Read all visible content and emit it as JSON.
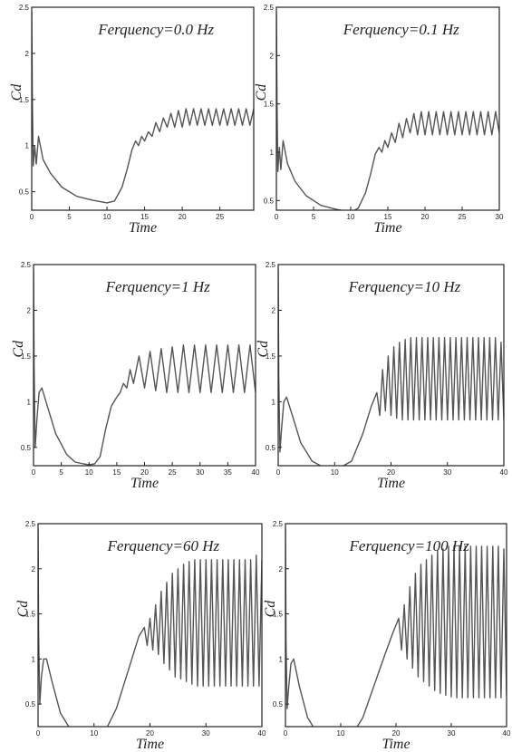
{
  "chart_data": [
    {
      "type": "line",
      "title": "Ferquency=0.0 Hz",
      "xlabel": "Time",
      "ylabel": "Cd",
      "xlim": [
        0,
        29.5
      ],
      "ylim": [
        0.3,
        2.5
      ],
      "x_ticks": [
        "0",
        "5",
        "10",
        "15",
        "20",
        "25"
      ],
      "y_ticks": [
        "0.5",
        "1",
        "1.5",
        "2",
        "2.5"
      ],
      "series": [
        {
          "x": [
            0.0,
            0.08,
            0.2,
            0.4,
            0.6,
            0.9,
            1.5,
            2.5,
            4,
            5,
            6,
            8,
            10,
            11,
            12,
            12.7,
            13.3,
            13.8,
            14.2,
            14.6,
            15.0,
            15.5,
            16.0,
            16.5,
            17.0,
            17.5,
            18.0,
            18.5,
            19.0,
            19.5,
            20.0,
            20.5,
            21.0,
            21.5,
            22.0,
            22.5,
            23.0,
            23.5,
            24.0,
            24.5,
            25.0,
            25.5,
            26.0,
            26.5,
            27.0,
            27.5,
            28.0,
            28.5,
            29.0,
            29.5
          ],
          "values": [
            2.45,
            1.5,
            0.78,
            1.0,
            0.8,
            1.1,
            0.85,
            0.7,
            0.55,
            0.5,
            0.45,
            0.41,
            0.38,
            0.4,
            0.55,
            0.75,
            0.95,
            1.05,
            1.0,
            1.1,
            1.05,
            1.15,
            1.1,
            1.25,
            1.15,
            1.3,
            1.2,
            1.35,
            1.2,
            1.38,
            1.2,
            1.4,
            1.22,
            1.4,
            1.22,
            1.4,
            1.22,
            1.4,
            1.22,
            1.4,
            1.22,
            1.4,
            1.22,
            1.4,
            1.22,
            1.4,
            1.22,
            1.4,
            1.22,
            1.4
          ]
        }
      ]
    },
    {
      "type": "line",
      "title": "Ferquency=0.1 Hz",
      "xlabel": "Time",
      "ylabel": "Cd",
      "xlim": [
        0,
        30
      ],
      "ylim": [
        0.4,
        2.5
      ],
      "x_ticks": [
        "0",
        "5",
        "10",
        "15",
        "20",
        "25",
        "30"
      ],
      "y_ticks": [
        "0.5",
        "1",
        "1.5",
        "2",
        "2.5"
      ],
      "series": [
        {
          "x": [
            0.0,
            0.08,
            0.2,
            0.4,
            0.6,
            0.9,
            1.5,
            2.5,
            4,
            5,
            6,
            8,
            10,
            11,
            12,
            12.7,
            13.3,
            13.8,
            14.2,
            14.6,
            15.0,
            15.5,
            16.0,
            16.5,
            17.0,
            17.5,
            18.0,
            18.5,
            19.0,
            19.5,
            20.0,
            20.5,
            21.0,
            21.5,
            22.0,
            22.5,
            23.0,
            23.5,
            24.0,
            24.5,
            25.0,
            25.5,
            26.0,
            26.5,
            27.0,
            27.5,
            28.0,
            28.5,
            29.0,
            29.5,
            30.0
          ],
          "values": [
            2.45,
            1.5,
            0.8,
            1.05,
            0.82,
            1.12,
            0.88,
            0.7,
            0.55,
            0.5,
            0.45,
            0.41,
            0.38,
            0.42,
            0.58,
            0.78,
            0.98,
            1.05,
            1.0,
            1.12,
            1.05,
            1.2,
            1.1,
            1.3,
            1.15,
            1.35,
            1.2,
            1.4,
            1.18,
            1.42,
            1.18,
            1.42,
            1.18,
            1.42,
            1.18,
            1.42,
            1.18,
            1.42,
            1.18,
            1.42,
            1.18,
            1.42,
            1.18,
            1.42,
            1.18,
            1.42,
            1.18,
            1.42,
            1.18,
            1.42,
            1.2
          ]
        }
      ]
    },
    {
      "type": "line",
      "title": "Ferquency=1 Hz",
      "xlabel": "Time",
      "ylabel": "Cd",
      "xlim": [
        0,
        40
      ],
      "ylim": [
        0.3,
        2.5
      ],
      "x_ticks": [
        "0",
        "5",
        "10",
        "15",
        "20",
        "25",
        "30",
        "35",
        "40"
      ],
      "y_ticks": [
        "0.5",
        "1",
        "1.5",
        "2",
        "2.5"
      ],
      "series": [
        {
          "x": [
            0.0,
            0.1,
            0.3,
            0.6,
            1.0,
            1.5,
            2.5,
            4,
            6,
            7.5,
            9,
            10,
            11,
            12,
            13,
            14,
            15,
            15.6,
            16.2,
            16.8,
            17.4,
            18.0,
            19.0,
            20.0,
            21.0,
            22.0,
            23.0,
            24.0,
            25.0,
            26.0,
            27.0,
            28.0,
            29.0,
            30.0,
            31.0,
            32.0,
            33.0,
            34.0,
            35.0,
            36.0,
            37.0,
            38.0,
            39.0,
            40.0
          ],
          "values": [
            2.45,
            1.4,
            0.5,
            0.8,
            1.1,
            1.15,
            0.95,
            0.65,
            0.42,
            0.34,
            0.32,
            0.31,
            0.32,
            0.4,
            0.7,
            0.95,
            1.05,
            1.1,
            1.2,
            1.15,
            1.35,
            1.2,
            1.5,
            1.15,
            1.55,
            1.12,
            1.58,
            1.1,
            1.6,
            1.1,
            1.62,
            1.1,
            1.62,
            1.1,
            1.62,
            1.1,
            1.62,
            1.1,
            1.62,
            1.1,
            1.62,
            1.1,
            1.62,
            1.1
          ]
        }
      ]
    },
    {
      "type": "line",
      "title": "Ferquency=10 Hz",
      "xlabel": "Time",
      "ylabel": "Cd",
      "xlim": [
        0,
        40
      ],
      "ylim": [
        0.3,
        2.5
      ],
      "x_ticks": [
        "0",
        "10",
        "20",
        "30",
        "40"
      ],
      "y_ticks": [
        "0.5",
        "1",
        "1.5",
        "2",
        "2.5"
      ],
      "series": [
        {
          "x": [
            0.0,
            0.1,
            0.3,
            0.6,
            1.0,
            1.5,
            2.5,
            4,
            6,
            7.5,
            9,
            11,
            13,
            15,
            16.5,
            17.5,
            18.0,
            18.5,
            19.0,
            19.5,
            20.0,
            20.5,
            21.0,
            21.5,
            22.0,
            22.5,
            23.0,
            23.5,
            24.0,
            24.5,
            25.0,
            25.5,
            26.0,
            26.5,
            27.0,
            27.5,
            28.0,
            28.5,
            29.0,
            29.5,
            30.0,
            30.5,
            31.0,
            31.5,
            32.0,
            32.5,
            33.0,
            33.5,
            34.0,
            34.5,
            35.0,
            35.5,
            36.0,
            36.5,
            37.0,
            37.5,
            38.0,
            38.5,
            39.0,
            39.5,
            40.0
          ],
          "values": [
            2.45,
            1.3,
            0.45,
            0.7,
            1.0,
            1.05,
            0.85,
            0.55,
            0.35,
            0.3,
            0.28,
            0.28,
            0.35,
            0.65,
            0.95,
            1.1,
            0.85,
            1.35,
            0.9,
            1.5,
            0.85,
            1.6,
            0.82,
            1.65,
            0.8,
            1.68,
            0.8,
            1.7,
            0.8,
            1.7,
            0.8,
            1.7,
            0.8,
            1.7,
            0.8,
            1.7,
            0.8,
            1.7,
            0.8,
            1.7,
            0.8,
            1.7,
            0.8,
            1.7,
            0.8,
            1.7,
            0.8,
            1.7,
            0.8,
            1.7,
            0.8,
            1.7,
            0.8,
            1.7,
            0.8,
            1.7,
            0.8,
            1.7,
            0.8,
            1.65,
            0.8
          ]
        }
      ]
    },
    {
      "type": "line",
      "title": "Ferquency=60 Hz",
      "xlabel": "Time",
      "ylabel": "Cd",
      "xlim": [
        0,
        40
      ],
      "ylim": [
        0.25,
        2.5
      ],
      "x_ticks": [
        "0",
        "10",
        "20",
        "30",
        "40"
      ],
      "y_ticks": [
        "0.5",
        "1",
        "1.5",
        "2",
        "2.5"
      ],
      "series": [
        {
          "x": [
            0.0,
            0.1,
            0.3,
            0.6,
            1.0,
            1.5,
            2.5,
            4,
            6,
            8,
            10,
            12,
            14,
            16,
            17,
            18,
            19,
            19.5,
            20.0,
            20.5,
            21.0,
            21.5,
            22.0,
            22.5,
            23.0,
            23.5,
            24.0,
            24.5,
            25.0,
            25.5,
            26.0,
            26.5,
            27.0,
            27.5,
            28.0,
            28.5,
            29.0,
            29.5,
            30.0,
            30.5,
            31.0,
            31.5,
            32.0,
            32.5,
            33.0,
            33.5,
            34.0,
            34.5,
            35.0,
            35.5,
            36.0,
            36.5,
            37.0,
            37.5,
            38.0,
            38.5,
            39.0,
            39.5,
            40.0
          ],
          "values": [
            2.45,
            1.3,
            0.5,
            0.8,
            1.0,
            1.0,
            0.75,
            0.4,
            0.2,
            0.18,
            0.18,
            0.2,
            0.45,
            0.85,
            1.05,
            1.25,
            1.35,
            1.15,
            1.45,
            1.1,
            1.6,
            1.05,
            1.75,
            0.95,
            1.85,
            0.88,
            1.95,
            0.8,
            2.0,
            0.78,
            2.05,
            0.75,
            2.08,
            0.72,
            2.1,
            0.7,
            2.1,
            0.7,
            2.1,
            0.7,
            2.1,
            0.7,
            2.1,
            0.7,
            2.1,
            0.7,
            2.1,
            0.7,
            2.1,
            0.7,
            2.1,
            0.7,
            2.1,
            0.7,
            2.1,
            0.7,
            2.15,
            0.7,
            2.1
          ]
        }
      ]
    },
    {
      "type": "line",
      "title": "Ferquency=100 Hz",
      "xlabel": "Time",
      "ylabel": "Cd",
      "xlim": [
        0,
        40
      ],
      "ylim": [
        0.25,
        2.5
      ],
      "x_ticks": [
        "0",
        "10",
        "20",
        "30",
        "40"
      ],
      "y_ticks": [
        "0.5",
        "1",
        "1.5",
        "2",
        "2.5"
      ],
      "series": [
        {
          "x": [
            0.0,
            0.1,
            0.3,
            0.6,
            1.0,
            1.5,
            2.5,
            4,
            6,
            8,
            10,
            12,
            14,
            16,
            18,
            19.5,
            20.5,
            21.0,
            21.5,
            22.0,
            22.5,
            23.0,
            23.5,
            24.0,
            24.5,
            25.0,
            25.5,
            26.0,
            26.5,
            27.0,
            27.5,
            28.0,
            28.5,
            29.0,
            29.5,
            30.0,
            30.5,
            31.0,
            31.5,
            32.0,
            32.5,
            33.0,
            33.5,
            34.0,
            34.5,
            35.0,
            35.5,
            36.0,
            36.5,
            37.0,
            37.5,
            38.0,
            38.5,
            39.0,
            39.5,
            40.0
          ],
          "values": [
            2.45,
            1.2,
            0.45,
            0.7,
            0.95,
            1.0,
            0.7,
            0.35,
            0.15,
            0.12,
            0.12,
            0.15,
            0.35,
            0.7,
            1.05,
            1.3,
            1.45,
            1.1,
            1.6,
            1.0,
            1.8,
            0.9,
            1.95,
            0.8,
            2.05,
            0.75,
            2.1,
            0.7,
            2.15,
            0.65,
            2.2,
            0.62,
            2.22,
            0.6,
            2.25,
            0.58,
            2.25,
            0.57,
            2.25,
            0.57,
            2.25,
            0.57,
            2.25,
            0.57,
            2.25,
            0.57,
            2.25,
            0.57,
            2.25,
            0.57,
            2.25,
            0.57,
            2.25,
            0.57,
            2.22,
            0.6
          ]
        }
      ]
    }
  ]
}
